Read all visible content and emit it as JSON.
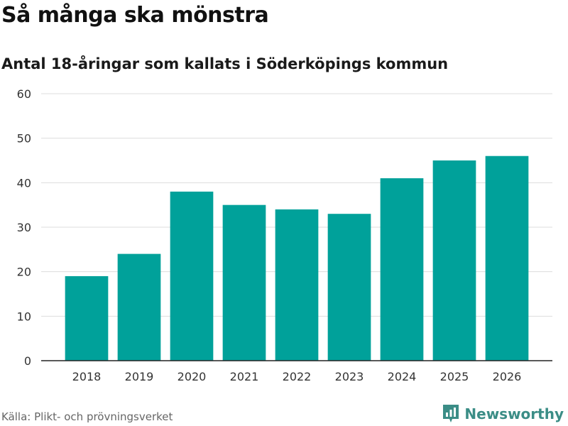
{
  "chart_data": {
    "type": "bar",
    "title": "Så många ska mönstra",
    "subtitle": "Antal 18-åringar som kallats i Söderköpings kommun",
    "categories": [
      "2018",
      "2019",
      "2020",
      "2021",
      "2022",
      "2023",
      "2024",
      "2025",
      "2026"
    ],
    "values": [
      19,
      24,
      38,
      35,
      34,
      33,
      41,
      45,
      46
    ],
    "xlabel": "",
    "ylabel": "",
    "ylim": [
      0,
      60
    ],
    "yticks": [
      "0",
      "10",
      "20",
      "30",
      "40",
      "50",
      "60"
    ],
    "grid": true,
    "bar_color": "#00a19a",
    "grid_color": "#dddddd",
    "axis_color": "#222222"
  },
  "footer": {
    "source": "Källa: Plikt- och prövningsverket",
    "brand": "Newsworthy",
    "brand_color": "#3b8d86",
    "logo_icon": "newsworthy-logo-icon"
  }
}
